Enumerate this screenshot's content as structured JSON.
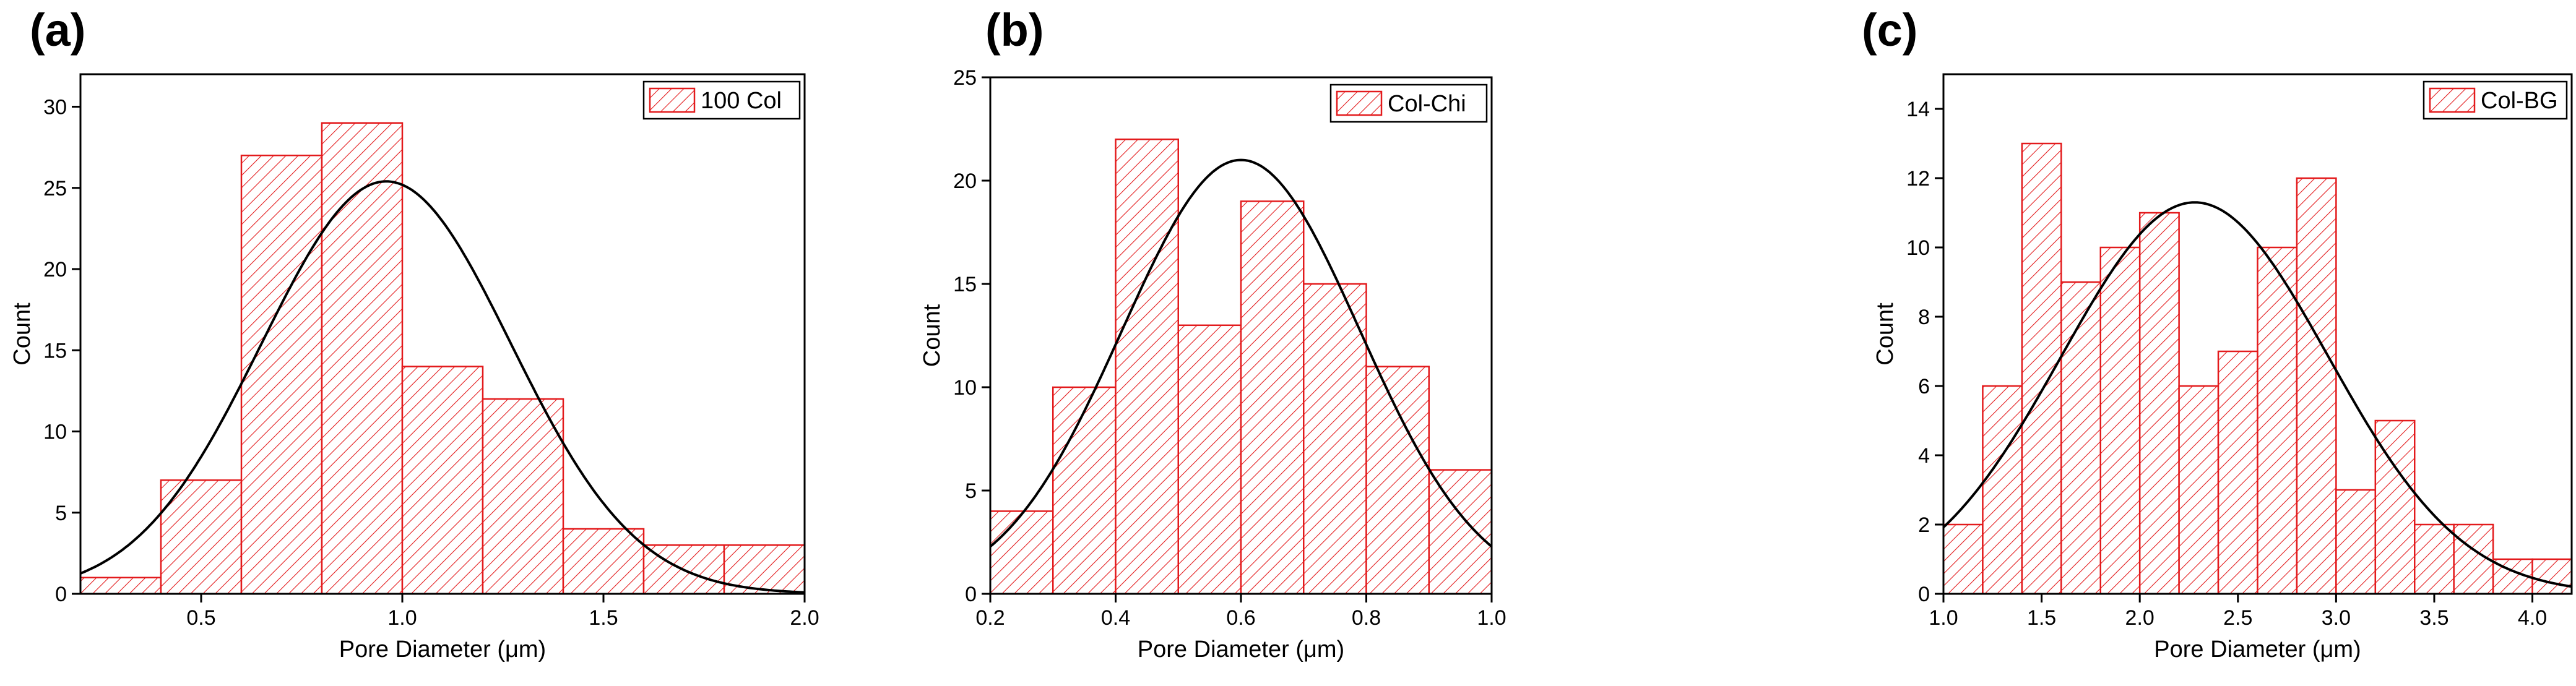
{
  "style": {
    "bar_stroke": "#e31a1c",
    "hatch_color": "#e31a1c",
    "fit_color": "#000000",
    "background": "#ffffff"
  },
  "chart_data": [
    {
      "panel_label": "(a)",
      "type": "bar",
      "subtype": "histogram",
      "legend": "100 Col",
      "legend_position": "top-right",
      "xlabel": "Pore Diameter (μm)",
      "ylabel": "Count",
      "xlim": [
        0.2,
        2.0
      ],
      "ylim": [
        0,
        32
      ],
      "xticks": [
        0.5,
        1.0,
        1.5,
        2.0
      ],
      "xtick_labels": [
        "0.5",
        "1.0",
        "1.5",
        "2.0"
      ],
      "yticks": [
        0,
        5,
        10,
        15,
        20,
        25,
        30
      ],
      "ytick_labels": [
        "0",
        "5",
        "10",
        "15",
        "20",
        "25",
        "30"
      ],
      "bins": [
        {
          "x0": 0.2,
          "x1": 0.4,
          "count": 1
        },
        {
          "x0": 0.4,
          "x1": 0.6,
          "count": 7
        },
        {
          "x0": 0.6,
          "x1": 0.8,
          "count": 27
        },
        {
          "x0": 0.8,
          "x1": 1.0,
          "count": 29
        },
        {
          "x0": 1.0,
          "x1": 1.2,
          "count": 14
        },
        {
          "x0": 1.2,
          "x1": 1.4,
          "count": 12
        },
        {
          "x0": 1.4,
          "x1": 1.6,
          "count": 4
        },
        {
          "x0": 1.6,
          "x1": 1.8,
          "count": 3
        },
        {
          "x0": 1.8,
          "x1": 2.0,
          "count": 3
        }
      ],
      "fit": {
        "kind": "normal",
        "mean": 0.96,
        "sd": 0.31,
        "peak": 25.4
      }
    },
    {
      "panel_label": "(b)",
      "type": "bar",
      "subtype": "histogram",
      "legend": "Col-Chi",
      "legend_position": "top-right",
      "xlabel": "Pore Diameter (μm)",
      "ylabel": "Count",
      "xlim": [
        0.2,
        1.0
      ],
      "ylim": [
        0,
        25
      ],
      "xticks": [
        0.2,
        0.4,
        0.6,
        0.8,
        1.0
      ],
      "xtick_labels": [
        "0.2",
        "0.4",
        "0.6",
        "0.8",
        "1.0"
      ],
      "yticks": [
        0,
        5,
        10,
        15,
        20,
        25
      ],
      "ytick_labels": [
        "0",
        "5",
        "10",
        "15",
        "20",
        "25"
      ],
      "bins": [
        {
          "x0": 0.2,
          "x1": 0.3,
          "count": 4
        },
        {
          "x0": 0.3,
          "x1": 0.4,
          "count": 10
        },
        {
          "x0": 0.4,
          "x1": 0.5,
          "count": 22
        },
        {
          "x0": 0.5,
          "x1": 0.6,
          "count": 13
        },
        {
          "x0": 0.6,
          "x1": 0.7,
          "count": 19
        },
        {
          "x0": 0.7,
          "x1": 0.8,
          "count": 15
        },
        {
          "x0": 0.8,
          "x1": 0.9,
          "count": 11
        },
        {
          "x0": 0.9,
          "x1": 1.0,
          "count": 6
        }
      ],
      "fit": {
        "kind": "normal",
        "mean": 0.6,
        "sd": 0.19,
        "peak": 21.0
      }
    },
    {
      "panel_label": "(c)",
      "type": "bar",
      "subtype": "histogram",
      "legend": "Col-BG",
      "legend_position": "top-right",
      "xlabel": "Pore Diameter (μm)",
      "ylabel": "Count",
      "xlim": [
        1.0,
        4.2
      ],
      "ylim": [
        0,
        15
      ],
      "xticks": [
        1.0,
        1.5,
        2.0,
        2.5,
        3.0,
        3.5,
        4.0
      ],
      "xtick_labels": [
        "1.0",
        "1.5",
        "2.0",
        "2.5",
        "3.0",
        "3.5",
        "4.0"
      ],
      "yticks": [
        0,
        2,
        4,
        6,
        8,
        10,
        12,
        14
      ],
      "ytick_labels": [
        "0",
        "2",
        "4",
        "6",
        "8",
        "10",
        "12",
        "14"
      ],
      "bins": [
        {
          "x0": 1.0,
          "x1": 1.2,
          "count": 2
        },
        {
          "x0": 1.2,
          "x1": 1.4,
          "count": 6
        },
        {
          "x0": 1.4,
          "x1": 1.6,
          "count": 13
        },
        {
          "x0": 1.6,
          "x1": 1.8,
          "count": 9
        },
        {
          "x0": 1.8,
          "x1": 2.0,
          "count": 10
        },
        {
          "x0": 2.0,
          "x1": 2.2,
          "count": 11
        },
        {
          "x0": 2.2,
          "x1": 2.4,
          "count": 6
        },
        {
          "x0": 2.4,
          "x1": 2.6,
          "count": 7
        },
        {
          "x0": 2.6,
          "x1": 2.8,
          "count": 10
        },
        {
          "x0": 2.8,
          "x1": 3.0,
          "count": 12
        },
        {
          "x0": 3.0,
          "x1": 3.2,
          "count": 3
        },
        {
          "x0": 3.2,
          "x1": 3.4,
          "count": 5
        },
        {
          "x0": 3.4,
          "x1": 3.6,
          "count": 2
        },
        {
          "x0": 3.6,
          "x1": 3.8,
          "count": 2
        },
        {
          "x0": 3.8,
          "x1": 4.0,
          "count": 1
        },
        {
          "x0": 4.0,
          "x1": 4.2,
          "count": 1
        }
      ],
      "fit": {
        "kind": "normal",
        "mean": 2.28,
        "sd": 0.68,
        "peak": 11.3
      }
    }
  ]
}
